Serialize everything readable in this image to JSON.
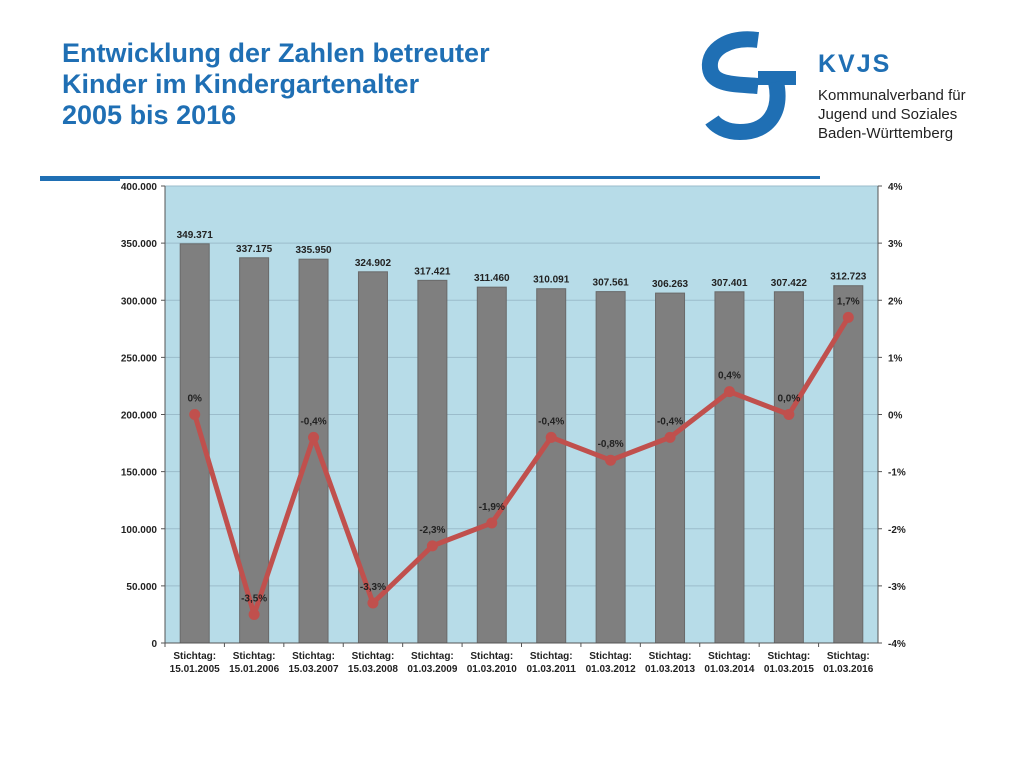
{
  "header": {
    "title_lines": [
      "Entwicklung der Zahlen betreuter",
      "Kinder im Kindergartenalter",
      "2005 bis 2016"
    ]
  },
  "logo": {
    "name": "KVJS",
    "sub_lines": [
      "Kommunalverband für",
      "Jugend und Soziales",
      "Baden-Württemberg"
    ]
  },
  "colors": {
    "title": "#1f6fb4",
    "plot_bg": "#b7dce8",
    "bar": "#7f7f7f",
    "line": "#c0504d"
  },
  "chart_data": {
    "type": "bar",
    "categories": [
      [
        "Stichtag:",
        "15.01.2005"
      ],
      [
        "Stichtag:",
        "15.01.2006"
      ],
      [
        "Stichtag:",
        "15.03.2007"
      ],
      [
        "Stichtag:",
        "15.03.2008"
      ],
      [
        "Stichtag:",
        "01.03.2009"
      ],
      [
        "Stichtag:",
        "01.03.2010"
      ],
      [
        "Stichtag:",
        "01.03.2011"
      ],
      [
        "Stichtag:",
        "01.03.2012"
      ],
      [
        "Stichtag:",
        "01.03.2013"
      ],
      [
        "Stichtag:",
        "01.03.2014"
      ],
      [
        "Stichtag:",
        "01.03.2015"
      ],
      [
        "Stichtag:",
        "01.03.2016"
      ]
    ],
    "series": [
      {
        "type": "bar",
        "axis": "left",
        "values": [
          349371,
          337175,
          335950,
          324902,
          317421,
          311460,
          310091,
          307561,
          306263,
          307401,
          307422,
          312723
        ],
        "labels": [
          "349.371",
          "337.175",
          "335.950",
          "324.902",
          "317.421",
          "311.460",
          "310.091",
          "307.561",
          "306.263",
          "307.401",
          "307.422",
          "312.723"
        ]
      },
      {
        "type": "line",
        "axis": "right",
        "values": [
          0,
          -3.5,
          -0.4,
          -3.3,
          -2.3,
          -1.9,
          -0.4,
          -0.8,
          -0.4,
          0.4,
          0.0,
          1.7
        ],
        "labels": [
          "0%",
          "-3,5%",
          "-0,4%",
          "-3,3%",
          "-2,3%",
          "-1,9%",
          "-0,4%",
          "-0,8%",
          "-0,4%",
          "0,4%",
          "0,0%",
          "1,7%"
        ]
      }
    ],
    "y_left": {
      "range": [
        0,
        400000
      ],
      "ticks": [
        0,
        50000,
        100000,
        150000,
        200000,
        250000,
        300000,
        350000,
        400000
      ],
      "tick_labels": [
        "0",
        "50.000",
        "100.000",
        "150.000",
        "200.000",
        "250.000",
        "300.000",
        "350.000",
        "400.000"
      ]
    },
    "y_right": {
      "range": [
        -4,
        4
      ],
      "ticks": [
        -4,
        -3,
        -2,
        -1,
        0,
        1,
        2,
        3,
        4
      ],
      "tick_labels": [
        "-4%",
        "-3%",
        "-2%",
        "-1%",
        "0%",
        "1%",
        "2%",
        "3%",
        "4%"
      ]
    },
    "grid": true,
    "legend": "none"
  }
}
